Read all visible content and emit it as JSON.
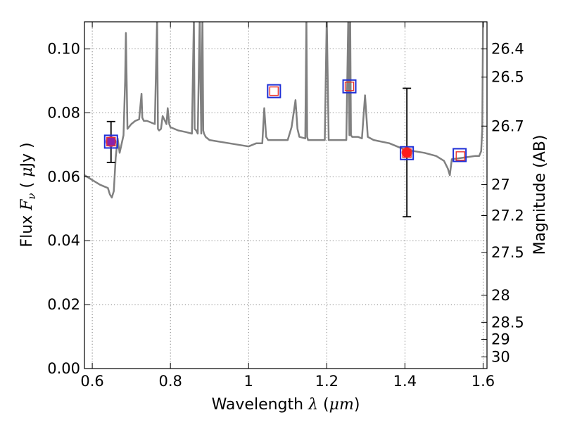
{
  "chart_data": {
    "type": "scatter",
    "xlabel": {
      "prefix": "Wavelength",
      "symbol": "λ",
      "open": "(",
      "unit": "μm",
      "close": ")"
    },
    "ylabel": {
      "prefix": "Flux",
      "symbol": "F",
      "subscript": "ν",
      "open": "(",
      "unit_mu": "μ",
      "unit": "Jy",
      "close": ")"
    },
    "ylabel_right": "Magnitude (AB)",
    "xlim": [
      0.58,
      1.61
    ],
    "ylim": [
      0.0,
      0.1085
    ],
    "grid": true,
    "x_ticks": [
      0.6,
      0.8,
      1.0,
      1.2,
      1.4,
      1.6
    ],
    "x_tick_labels": [
      "0.6",
      "0.8",
      "1",
      "1.2",
      "1.4",
      "1.6"
    ],
    "y_ticks": [
      0.0,
      0.02,
      0.04,
      0.06,
      0.08,
      0.1
    ],
    "y_tick_labels": [
      "0.00",
      "0.02",
      "0.04",
      "0.06",
      "0.08",
      "0.10"
    ],
    "mag_ticks": [
      {
        "mag": 26.4,
        "label": "26.4"
      },
      {
        "mag": 26.5,
        "label": "26.5"
      },
      {
        "mag": 26.7,
        "label": "26.7"
      },
      {
        "mag": 27.0,
        "label": "27"
      },
      {
        "mag": 27.2,
        "label": "27.2"
      },
      {
        "mag": 27.5,
        "label": "27.5"
      },
      {
        "mag": 28.0,
        "label": "28"
      },
      {
        "mag": 28.5,
        "label": "28.5"
      },
      {
        "mag": 29.0,
        "label": "29"
      },
      {
        "mag": 30.0,
        "label": "30"
      }
    ],
    "model_spectrum": {
      "color": "#808080",
      "x": [
        0.58,
        0.6,
        0.62,
        0.64,
        0.645,
        0.65,
        0.655,
        0.66,
        0.665,
        0.67,
        0.68,
        0.684,
        0.686,
        0.688,
        0.69,
        0.7,
        0.71,
        0.72,
        0.726,
        0.728,
        0.732,
        0.74,
        0.76,
        0.766,
        0.768,
        0.771,
        0.776,
        0.78,
        0.79,
        0.793,
        0.797,
        0.8,
        0.82,
        0.84,
        0.855,
        0.86,
        0.862,
        0.866,
        0.87,
        0.875,
        0.877,
        0.879,
        0.882,
        0.884,
        0.886,
        0.89,
        0.9,
        0.95,
        1.0,
        1.02,
        1.035,
        1.04,
        1.045,
        1.05,
        1.1,
        1.11,
        1.12,
        1.125,
        1.13,
        1.145,
        1.148,
        1.15,
        1.152,
        1.155,
        1.18,
        1.195,
        1.2,
        1.205,
        1.22,
        1.25,
        1.255,
        1.258,
        1.26,
        1.262,
        1.265,
        1.28,
        1.29,
        1.298,
        1.305,
        1.32,
        1.36,
        1.4,
        1.45,
        1.48,
        1.5,
        1.51,
        1.515,
        1.52,
        1.55,
        1.58,
        1.59,
        1.595,
        1.598,
        1.6,
        1.605
      ],
      "y": [
        0.0605,
        0.059,
        0.0575,
        0.0565,
        0.0545,
        0.0535,
        0.0555,
        0.066,
        0.072,
        0.0675,
        0.073,
        0.09,
        0.105,
        0.09,
        0.075,
        0.0765,
        0.0775,
        0.078,
        0.086,
        0.0785,
        0.0775,
        0.0775,
        0.0765,
        0.11,
        0.075,
        0.0745,
        0.075,
        0.079,
        0.0765,
        0.0815,
        0.0765,
        0.0755,
        0.0745,
        0.074,
        0.0735,
        0.11,
        0.075,
        0.0745,
        0.0735,
        0.11,
        0.09,
        0.0735,
        0.11,
        0.0745,
        0.0735,
        0.0725,
        0.0715,
        0.0705,
        0.0695,
        0.0705,
        0.0705,
        0.0815,
        0.0725,
        0.0715,
        0.0715,
        0.0755,
        0.084,
        0.075,
        0.0725,
        0.072,
        0.11,
        0.0725,
        0.0715,
        0.0715,
        0.0715,
        0.0715,
        0.11,
        0.0715,
        0.0715,
        0.0715,
        0.11,
        0.073,
        0.11,
        0.073,
        0.0725,
        0.0725,
        0.072,
        0.0855,
        0.0725,
        0.0715,
        0.0705,
        0.0685,
        0.0675,
        0.0665,
        0.065,
        0.0625,
        0.0605,
        0.0655,
        0.066,
        0.0665,
        0.0665,
        0.068,
        0.075,
        0.11,
        0.11
      ]
    },
    "filled_points": [
      {
        "x": 0.648,
        "y": 0.071,
        "fill": "#8b22aa",
        "yerr": [
          0.0645,
          0.0773
        ]
      },
      {
        "x": 1.405,
        "y": 0.0676,
        "fill": "#ff1a1a",
        "yerr": [
          0.0475,
          0.0877
        ]
      }
    ],
    "blue_squares": {
      "edge": "#1f2fd6",
      "points": [
        {
          "x": 0.648,
          "y": 0.071
        },
        {
          "x": 1.065,
          "y": 0.0868
        },
        {
          "x": 1.258,
          "y": 0.0883
        },
        {
          "x": 1.405,
          "y": 0.0674
        },
        {
          "x": 1.54,
          "y": 0.0668
        }
      ]
    },
    "red_squares": {
      "edge": "#e8322a",
      "points": [
        {
          "x": 0.648,
          "y": 0.071
        },
        {
          "x": 1.065,
          "y": 0.0868
        },
        {
          "x": 1.258,
          "y": 0.0883
        },
        {
          "x": 1.405,
          "y": 0.0674
        },
        {
          "x": 1.542,
          "y": 0.0665
        }
      ]
    }
  }
}
